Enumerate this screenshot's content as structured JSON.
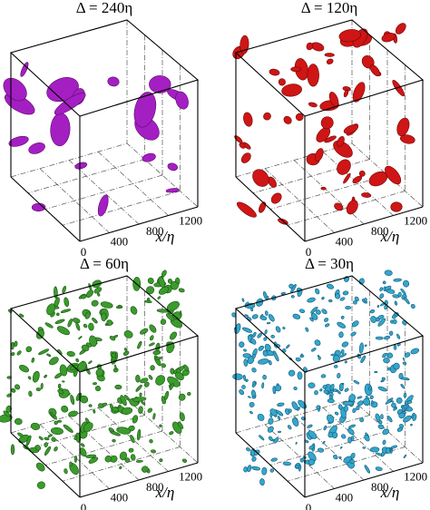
{
  "panels": [
    {
      "title": "Δ = 240η"
    },
    {
      "title": "Δ = 120η"
    },
    {
      "title": "Δ = 60η"
    },
    {
      "title": "Δ = 30η"
    }
  ],
  "x_ticks": [
    "0",
    "400",
    "800",
    "1200"
  ],
  "x_label": "x/η"
}
